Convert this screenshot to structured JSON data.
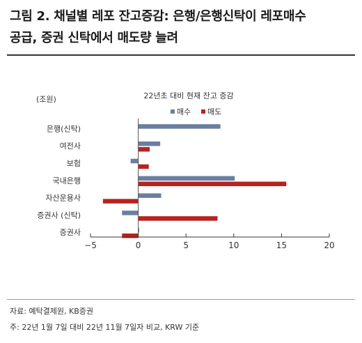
{
  "title_line1": "그림 2. 채널별 레포 잔고증감: 은행/은행신탁이 레포매수",
  "title_line2": "공급, 증권 신탁에서 매도량 늘려",
  "source": "자료: 예탁결제원, KB증권",
  "note": "주: 22년 1월 7일 대비 22년 11월 7일자 비교, KRW 기준",
  "chart_data": {
    "type": "bar",
    "orientation": "horizontal",
    "title": "22년초 대비 현재 잔고 증감",
    "unit_label": "(조원)",
    "categories": [
      "은행(신탁)",
      "여전사",
      "보험",
      "국내은행",
      "자산운용사",
      "증권사 (신탁)",
      "증권사"
    ],
    "series": [
      {
        "name": "매수",
        "color": "#6a7fa0",
        "values": [
          8.6,
          2.3,
          -0.8,
          10.1,
          2.4,
          -1.7,
          0.1
        ]
      },
      {
        "name": "매도",
        "color": "#b8231f",
        "values": [
          0,
          1.2,
          1.1,
          15.5,
          -3.7,
          8.3,
          -1.7
        ]
      }
    ],
    "xlim": [
      -5,
      20
    ],
    "xticks": [
      -5,
      0,
      5,
      10,
      15,
      20
    ],
    "legend_position": "top-center",
    "grid": false
  }
}
